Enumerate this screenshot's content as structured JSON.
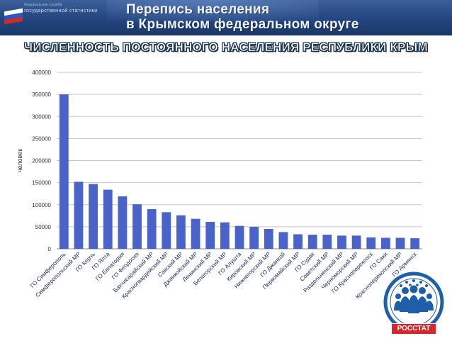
{
  "header": {
    "agency_line1": "Федеральная служба",
    "agency_line2": "государственной статистики",
    "title_line1": "Перепись населения",
    "title_line2": "в Крымском федеральном округе"
  },
  "headline": "ЧИСЛЕННОСТЬ ПОСТОЯННОГО НАСЕЛЕНИЯ РЕСПУБЛИКИ КРЫМ",
  "logo": {
    "label": "РОССТАТ"
  },
  "colors": {
    "bar": "#4a63c8",
    "header": "#23457f",
    "logo_red": "#d7262c",
    "logo_blue": "#1f5ea8"
  },
  "chart_data": {
    "type": "bar",
    "title": "",
    "xlabel": "",
    "ylabel": "человек",
    "ylim": [
      0,
      400000
    ],
    "yticks": [
      0,
      50000,
      100000,
      150000,
      200000,
      250000,
      300000,
      350000,
      400000
    ],
    "grid": true,
    "legend": "none",
    "categories": [
      "ГО Симферополь",
      "Симферопольский МР",
      "ГО Керчь",
      "ГО Ялта",
      "ГО Евпатория",
      "ГО Феодосия",
      "Бахчисарайский МР",
      "Красногвардейский МР",
      "Сакский МР",
      "Джанкойский МР",
      "Ленинский МР",
      "Белогорский МР",
      "ГО Алушта",
      "Кировский МР",
      "Нижнегорский МР",
      "ГО Джанкой",
      "Первомайский МР",
      "ГО Судак",
      "Советский МР",
      "Раздольненский МР",
      "Черноморский МР",
      "ГО Красноперекопск",
      "ГО Саки",
      "Красноперекопский МР",
      "ГО Армянск"
    ],
    "values": [
      350000,
      152000,
      147000,
      134000,
      119000,
      101000,
      90000,
      83000,
      76000,
      68000,
      61000,
      60000,
      52000,
      50000,
      45000,
      38000,
      33000,
      32000,
      32000,
      30000,
      30000,
      26000,
      25000,
      25000,
      24000
    ]
  }
}
